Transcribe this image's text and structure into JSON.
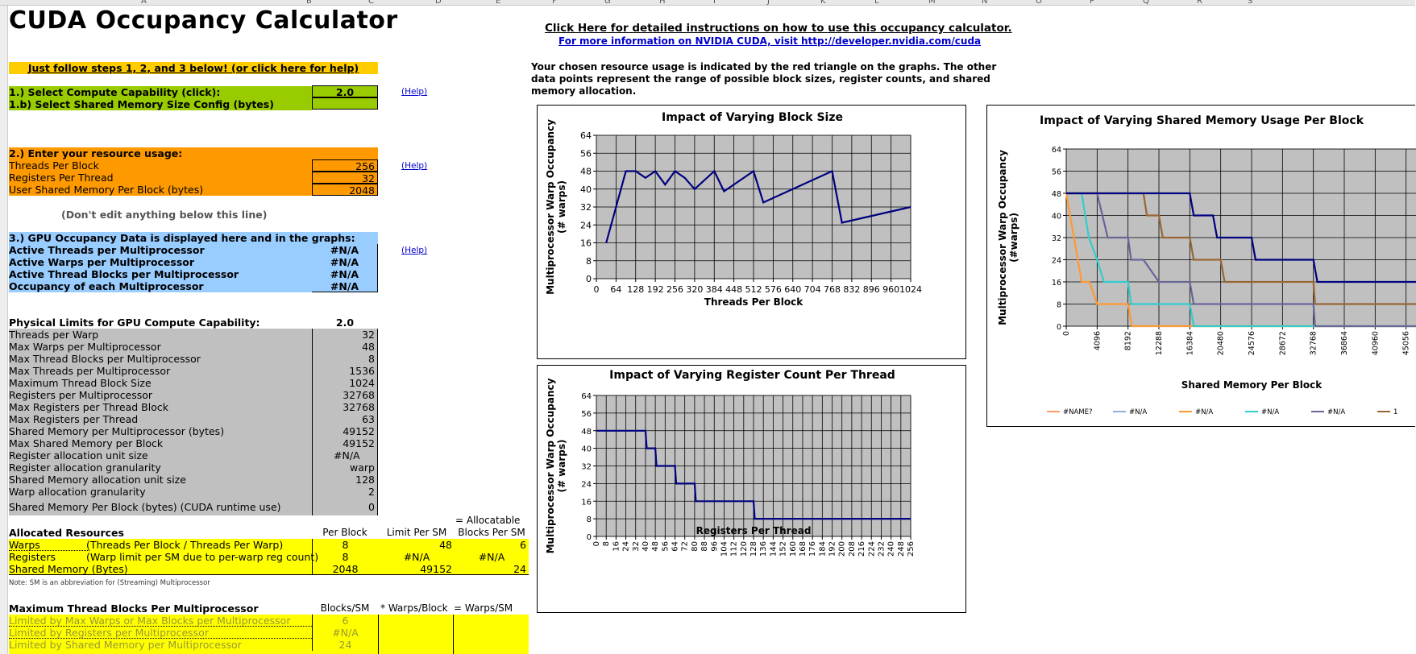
{
  "column_headers": [
    "A",
    "B",
    "C",
    "D",
    "E",
    "F",
    "G",
    "H",
    "I",
    "J",
    "K",
    "L",
    "M",
    "N",
    "O",
    "P",
    "Q",
    "R",
    "S"
  ],
  "title": "CUDA Occupancy Calculator",
  "instructions_link": "Click Here for detailed instructions on how to use this occupancy calculator.",
  "info_link": "For more information on NVIDIA CUDA, visit http://developer.nvidia.com/cuda",
  "follow_steps": "Just follow steps 1, 2, and 3 below! (or click here for help)",
  "step1": {
    "label": "1.) Select Compute Capability (click):",
    "value": "2.0",
    "label_b": "1.b) Select Shared Memory Size Config (bytes)",
    "value_b": "",
    "help": "(Help)"
  },
  "step2": {
    "label": "2.) Enter your resource usage:",
    "rows": [
      {
        "label": "Threads Per Block",
        "value": "256"
      },
      {
        "label": "Registers Per Thread",
        "value": "32"
      },
      {
        "label": "User Shared Memory Per Block (bytes)",
        "value": "2048"
      }
    ],
    "help": "(Help)"
  },
  "dont_edit": "(Don't edit anything below this line)",
  "step3": {
    "label": "3.) GPU Occupancy Data is displayed here and in the graphs:",
    "rows": [
      {
        "label": "Active Threads per Multiprocessor",
        "value": "#N/A"
      },
      {
        "label": "Active Warps per Multiprocessor",
        "value": "#N/A"
      },
      {
        "label": "Active Thread Blocks per Multiprocessor",
        "value": "#N/A"
      },
      {
        "label": "Occupancy of each Multiprocessor",
        "value": "#N/A"
      }
    ],
    "help": "(Help)"
  },
  "physical_limits": {
    "label": "Physical Limits for GPU Compute Capability:",
    "value": "2.0",
    "rows": [
      {
        "label": "Threads per Warp",
        "value": "32"
      },
      {
        "label": "Max Warps per Multiprocessor",
        "value": "48"
      },
      {
        "label": "Max Thread Blocks per Multiprocessor",
        "value": "8"
      },
      {
        "label": "Max Threads per Multiprocessor",
        "value": "1536"
      },
      {
        "label": "Maximum Thread Block Size",
        "value": "1024"
      },
      {
        "label": "Registers per Multiprocessor",
        "value": "32768"
      },
      {
        "label": "Max Registers per Thread Block",
        "value": "32768"
      },
      {
        "label": "Max Registers per Thread",
        "value": "63"
      },
      {
        "label": "Shared Memory per Multiprocessor (bytes)",
        "value": "49152"
      },
      {
        "label": "Max Shared Memory per Block",
        "value": "49152"
      },
      {
        "label": "Register allocation unit size",
        "value": "#N/A"
      },
      {
        "label": "Register allocation granularity",
        "value": "warp"
      },
      {
        "label": "Shared Memory allocation unit size",
        "value": "128"
      },
      {
        "label": "Warp allocation granularity",
        "value": "2"
      }
    ],
    "shared_mem_label": "Shared Memory Per Block (bytes) (CUDA runtime use)",
    "shared_mem_value": "0"
  },
  "allocated": {
    "label": "Allocated Resources",
    "col_per_block": "Per Block",
    "col_limit": "Limit Per SM",
    "col_alloc_top": "= Allocatable",
    "col_alloc": "Blocks Per SM",
    "rows": [
      {
        "label": "Warps",
        "desc": "(Threads Per Block / Threads Per Warp)",
        "per_block": "8",
        "limit": "48",
        "alloc": "6"
      },
      {
        "label": "Registers",
        "desc": "(Warp limit per SM due to per-warp reg count)",
        "per_block": "8",
        "limit": "#N/A",
        "alloc": "#N/A"
      },
      {
        "label": "Shared Memory (Bytes)",
        "desc": "",
        "per_block": "2048",
        "limit": "49152",
        "alloc": "24"
      }
    ],
    "note": "Note: SM is an abbreviation for (Streaming) Multiprocessor"
  },
  "max_blocks": {
    "label": "Maximum Thread Blocks Per Multiprocessor",
    "col1": "Blocks/SM",
    "col2": "* Warps/Block",
    "col3": "= Warps/SM",
    "rows": [
      {
        "label": "Limited by Max Warps or Max Blocks per Multiprocessor",
        "value": "6"
      },
      {
        "label": "Limited by Registers per Multiprocessor",
        "value": "#N/A"
      },
      {
        "label": "Limited by Shared Memory per Multiprocessor",
        "value": "24"
      }
    ]
  },
  "chosen_note": "Your chosen resource usage is indicated by the red triangle on the graphs.  The other data points represent the range of possible block sizes, register counts, and shared memory allocation.",
  "colors": {
    "line_navy": "#000080",
    "plot_bg": "#c0c0c0",
    "line_orange": "#ff9933",
    "line_teal": "#33cccc",
    "line_slate": "#666699",
    "line_brown": "#996633",
    "line_salmon": "#ff9966",
    "line_lightblue": "#99aadd"
  },
  "chart_data": [
    {
      "type": "line",
      "title": "Impact of Varying Block Size",
      "xlabel": "Threads Per Block",
      "ylabel": "Multiprocessor Warp Occupancy (# warps)",
      "xlim": [
        0,
        1024
      ],
      "ylim": [
        0,
        64
      ],
      "xticks": [
        "0",
        "64",
        "128",
        "192",
        "256",
        "320",
        "384",
        "448",
        "512",
        "576",
        "640",
        "704",
        "768",
        "832",
        "896",
        "960",
        "1024"
      ],
      "yticks": [
        "0",
        "8",
        "16",
        "24",
        "32",
        "40",
        "48",
        "56",
        "64"
      ],
      "series": [
        {
          "color": "#000080",
          "x": [
            32,
            64,
            96,
            128,
            160,
            192,
            224,
            256,
            288,
            320,
            384,
            416,
            512,
            544,
            768,
            800,
            1024
          ],
          "y": [
            16,
            32,
            48,
            48,
            45,
            48,
            42,
            48,
            45,
            40,
            48,
            39,
            48,
            34,
            48,
            25,
            32
          ]
        }
      ]
    },
    {
      "type": "line",
      "title": "Impact of Varying Register Count Per Thread",
      "xlabel": "Registers Per Thread",
      "ylabel": "Multiprocessor Warp Occupancy (# warps)",
      "xlim": [
        0,
        256
      ],
      "ylim": [
        0,
        64
      ],
      "xticks": [
        "0",
        "8",
        "16",
        "24",
        "32",
        "40",
        "48",
        "56",
        "64",
        "72",
        "80",
        "88",
        "96",
        "104",
        "112",
        "120",
        "128",
        "136",
        "144",
        "152",
        "160",
        "168",
        "176",
        "184",
        "192",
        "200",
        "208",
        "216",
        "224",
        "232",
        "240",
        "248",
        "256"
      ],
      "yticks": [
        "0",
        "8",
        "16",
        "24",
        "32",
        "40",
        "48",
        "56",
        "64"
      ],
      "series": [
        {
          "color": "#000080",
          "x": [
            0,
            40,
            41,
            48,
            49,
            64,
            65,
            80,
            81,
            128,
            129,
            256
          ],
          "y": [
            48,
            48,
            40,
            40,
            32,
            32,
            24,
            24,
            16,
            16,
            8,
            8
          ]
        }
      ]
    },
    {
      "type": "line",
      "title": "Impact of Varying Shared Memory Usage Per Block",
      "xlabel": "Shared Memory Per Block",
      "ylabel": "Multiprocessor Warp Occupancy (#warps)",
      "xlim": [
        0,
        49152
      ],
      "ylim": [
        0,
        64
      ],
      "xticks": [
        "0",
        "4096",
        "8192",
        "12288",
        "16384",
        "20480",
        "24576",
        "28672",
        "32768",
        "36864",
        "40960",
        "45056"
      ],
      "yticks": [
        "0",
        "8",
        "16",
        "24",
        "32",
        "40",
        "48",
        "56",
        "64"
      ],
      "series": [
        {
          "name": "#N/A",
          "color": "#ff9933",
          "x": [
            0,
            1024,
            2048,
            3072,
            4096,
            8192,
            8704,
            49152
          ],
          "y": [
            48,
            32,
            16,
            16,
            8,
            8,
            0,
            0
          ]
        },
        {
          "name": "#N/A",
          "color": "#33cccc",
          "x": [
            0,
            2048,
            3000,
            4096,
            5000,
            8192,
            8600,
            16384,
            16900,
            49152
          ],
          "y": [
            48,
            48,
            32,
            24,
            16,
            16,
            8,
            8,
            0,
            0
          ]
        },
        {
          "name": "#N/A",
          "color": "#666699",
          "x": [
            0,
            4096,
            4800,
            5500,
            6144,
            8192,
            8600,
            10240,
            12288,
            16384,
            16900,
            32768,
            33000,
            49152
          ],
          "y": [
            48,
            48,
            40,
            32,
            32,
            32,
            24,
            24,
            16,
            16,
            8,
            8,
            0,
            0
          ]
        },
        {
          "name": "#N/A",
          "color": "#996633",
          "x": [
            0,
            10240,
            10700,
            12288,
            12800,
            16384,
            16900,
            20480,
            21000,
            32768,
            33000,
            49152
          ],
          "y": [
            48,
            48,
            40,
            40,
            32,
            32,
            24,
            24,
            16,
            16,
            8,
            8
          ]
        },
        {
          "name": "#N/A",
          "color": "#000080",
          "x": [
            0,
            16384,
            16900,
            19456,
            20000,
            24576,
            25100,
            32768,
            33300,
            49152
          ],
          "y": [
            48,
            48,
            40,
            40,
            32,
            32,
            24,
            24,
            16,
            16
          ]
        }
      ],
      "legend": [
        "#NAME?",
        "#N/A",
        "#N/A",
        "#N/A",
        "#N/A",
        "1"
      ]
    }
  ]
}
